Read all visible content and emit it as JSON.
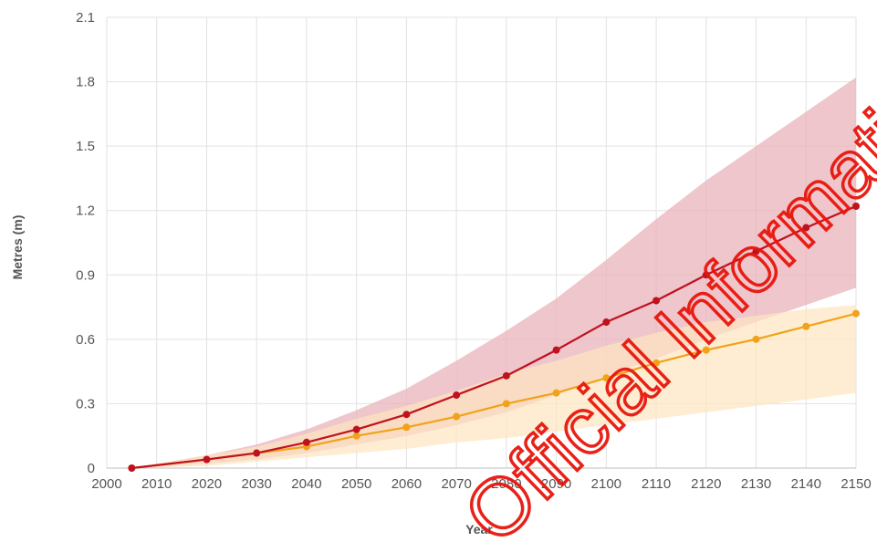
{
  "chart_data": {
    "type": "line",
    "title": "",
    "xlabel": "Year",
    "ylabel": "Metres (m)",
    "xlim": [
      2000,
      2150
    ],
    "ylim": [
      0,
      2.1
    ],
    "xticks": [
      2000,
      2010,
      2020,
      2030,
      2040,
      2050,
      2060,
      2070,
      2080,
      2090,
      2100,
      2110,
      2120,
      2130,
      2140,
      2150
    ],
    "yticks": [
      0,
      0.3,
      0.6,
      0.9,
      1.2,
      1.5,
      1.8,
      2.1
    ],
    "ytick_labels": [
      "0",
      "0.3",
      "0.6",
      "0.9",
      "1.2",
      "1.5",
      "1.8",
      "2.1"
    ],
    "grid": true,
    "x": [
      2005,
      2020,
      2030,
      2040,
      2050,
      2060,
      2070,
      2080,
      2090,
      2100,
      2110,
      2120,
      2130,
      2140,
      2150
    ],
    "series": [
      {
        "color": "#c0111f",
        "band_color": "#e8b3bb",
        "values": [
          0.0,
          0.04,
          0.07,
          0.12,
          0.18,
          0.25,
          0.34,
          0.43,
          0.55,
          0.68,
          0.78,
          0.9,
          1.01,
          1.12,
          1.22
        ],
        "band_lower": [
          0.0,
          0.02,
          0.04,
          0.07,
          0.11,
          0.15,
          0.2,
          0.26,
          0.34,
          0.43,
          0.51,
          0.6,
          0.68,
          0.76,
          0.84
        ],
        "band_upper": [
          0.0,
          0.06,
          0.11,
          0.18,
          0.27,
          0.37,
          0.5,
          0.64,
          0.79,
          0.97,
          1.16,
          1.34,
          1.5,
          1.66,
          1.82
        ]
      },
      {
        "color": "#f2a218",
        "band_color": "#fde6bf",
        "values": [
          0.0,
          0.04,
          0.07,
          0.1,
          0.15,
          0.19,
          0.24,
          0.3,
          0.35,
          0.42,
          0.49,
          0.55,
          0.6,
          0.66,
          0.72
        ],
        "band_lower": [
          0.0,
          0.01,
          0.03,
          0.05,
          0.07,
          0.09,
          0.12,
          0.14,
          0.17,
          0.2,
          0.23,
          0.26,
          0.29,
          0.32,
          0.35
        ],
        "band_upper": [
          0.0,
          0.06,
          0.1,
          0.16,
          0.23,
          0.29,
          0.36,
          0.44,
          0.5,
          0.57,
          0.63,
          0.68,
          0.71,
          0.74,
          0.76
        ]
      }
    ]
  },
  "watermark": {
    "text": "Official Information",
    "color": "#e8160c"
  }
}
